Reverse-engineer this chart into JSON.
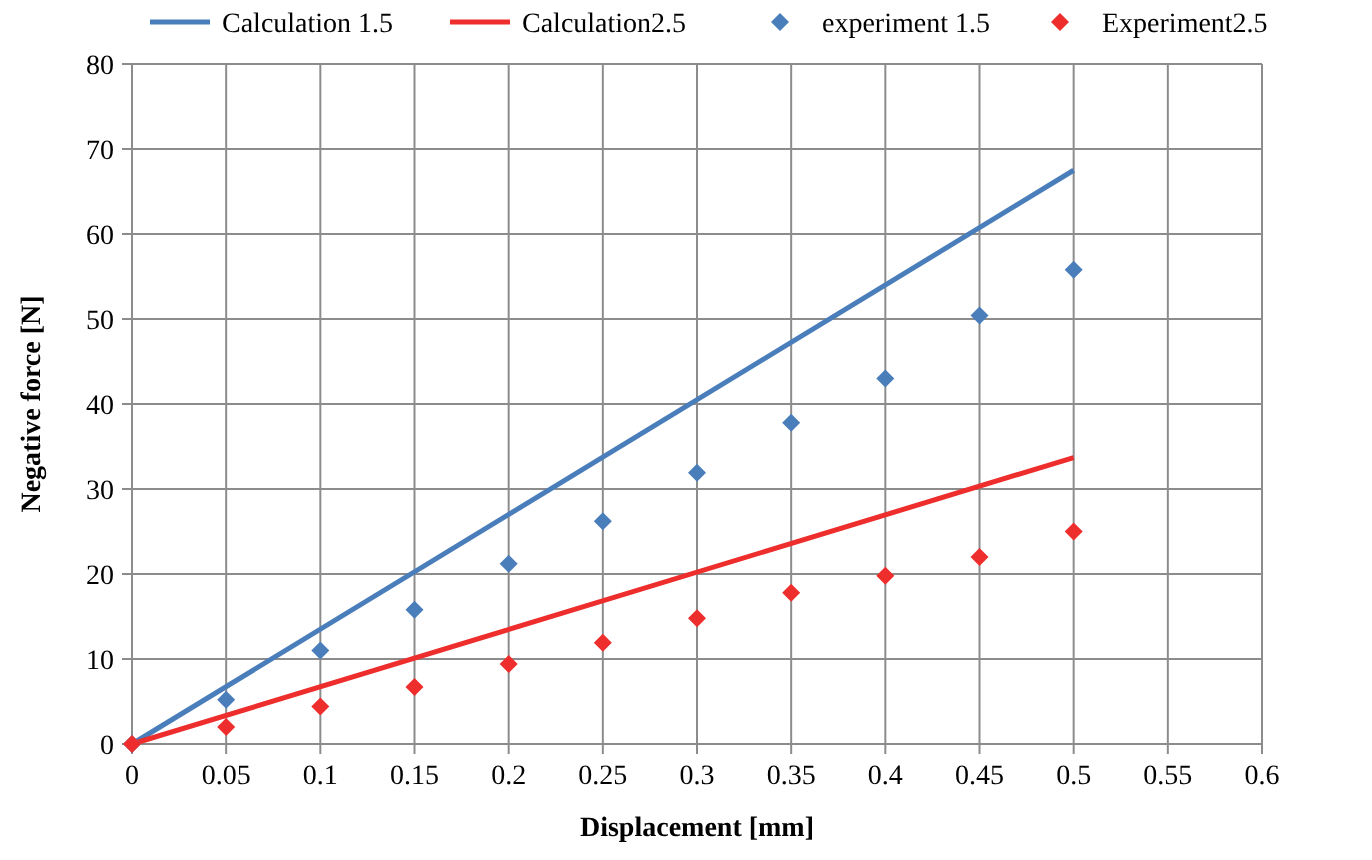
{
  "chart_data": {
    "type": "line",
    "xlabel": "Displacement [mm]",
    "ylabel": "Negative force [N]",
    "xlim": [
      0,
      0.6
    ],
    "xticks": [
      0,
      0.05,
      0.1,
      0.15,
      0.2,
      0.25,
      0.3,
      0.35,
      0.4,
      0.45,
      0.5,
      0.55,
      0.6
    ],
    "ylim": [
      0,
      80
    ],
    "yticks": [
      0,
      10,
      20,
      30,
      40,
      50,
      60,
      70,
      80
    ],
    "grid": true,
    "legend": "top",
    "series": [
      {
        "name": "Calculation 1.5",
        "color": "#4a7ebb",
        "marker": "none",
        "x": [
          0,
          0.5
        ],
        "values": [
          0,
          67.5
        ]
      },
      {
        "name": "Calculation2.5",
        "color": "#ee2d2d",
        "marker": "none",
        "x": [
          0,
          0.5
        ],
        "values": [
          0,
          33.7
        ]
      },
      {
        "name": "experiment 1.5",
        "type": "scatter",
        "color": "#4a7ebb",
        "marker": "diamond",
        "x": [
          0,
          0.05,
          0.1,
          0.15,
          0.2,
          0.25,
          0.3,
          0.35,
          0.4,
          0.45,
          0.5
        ],
        "values": [
          0,
          5.2,
          11,
          15.8,
          21.2,
          26.2,
          31.9,
          37.8,
          43,
          50.4,
          55.8
        ]
      },
      {
        "name": "Experiment2.5",
        "type": "scatter",
        "color": "#ee2d2d",
        "marker": "diamond",
        "x": [
          0,
          0.05,
          0.1,
          0.15,
          0.2,
          0.25,
          0.3,
          0.35,
          0.4,
          0.45,
          0.5
        ],
        "values": [
          0,
          2,
          4.4,
          6.7,
          9.4,
          11.9,
          14.8,
          17.8,
          19.8,
          22,
          25
        ]
      }
    ]
  }
}
